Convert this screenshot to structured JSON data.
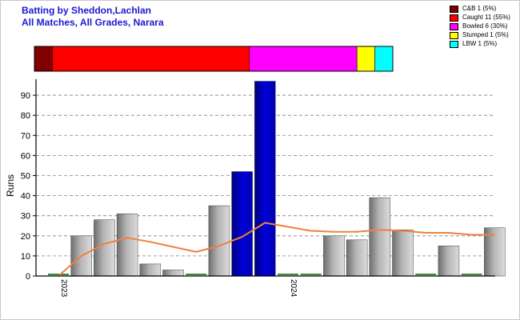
{
  "title_line1": "Batting by Sheddon,Lachlan",
  "title_line2": "All Matches, All Grades, Narara",
  "legend": [
    {
      "label": "C&B 1 (5%)",
      "color": "#800000"
    },
    {
      "label": "Caught 11 (55%)",
      "color": "#ff0000"
    },
    {
      "label": "Bowled 6 (30%)",
      "color": "#ff00ff"
    },
    {
      "label": "Stumped 1 (5%)",
      "color": "#ffff00"
    },
    {
      "label": "LBW 1 (5%)",
      "color": "#00ffff"
    }
  ],
  "chart_data": {
    "type": "bar",
    "ylabel": "Runs",
    "xlabel": "",
    "ylim": [
      0,
      98
    ],
    "yticks": [
      0,
      10,
      20,
      30,
      40,
      50,
      60,
      70,
      80,
      90
    ],
    "grid": "horizontal dashed",
    "x_tick_labels": [
      {
        "label": "2023",
        "at_bar": 0
      },
      {
        "label": "2024",
        "at_bar": 10
      }
    ],
    "bars": [
      {
        "value": 0,
        "style": "not-out"
      },
      {
        "value": 20,
        "style": "out"
      },
      {
        "value": 28,
        "style": "out"
      },
      {
        "value": 31,
        "style": "out"
      },
      {
        "value": 6,
        "style": "out"
      },
      {
        "value": 3,
        "style": "out"
      },
      {
        "value": 0,
        "style": "not-out"
      },
      {
        "value": 35,
        "style": "out"
      },
      {
        "value": 52,
        "style": "highlight"
      },
      {
        "value": 97,
        "style": "highlight"
      },
      {
        "value": 0,
        "style": "not-out"
      },
      {
        "value": 0,
        "style": "not-out"
      },
      {
        "value": 20,
        "style": "out"
      },
      {
        "value": 18,
        "style": "out"
      },
      {
        "value": 39,
        "style": "out"
      },
      {
        "value": 23,
        "style": "out"
      },
      {
        "value": 0,
        "style": "not-out"
      },
      {
        "value": 15,
        "style": "out"
      },
      {
        "value": 0,
        "style": "not-out"
      },
      {
        "value": 24,
        "style": "out"
      }
    ],
    "average_line": {
      "color": "#f08040",
      "points": [
        {
          "at_bar": 0,
          "value": 0
        },
        {
          "at_bar": 1,
          "value": 10
        },
        {
          "at_bar": 2,
          "value": 16
        },
        {
          "at_bar": 3,
          "value": 19
        },
        {
          "at_bar": 4,
          "value": 17
        },
        {
          "at_bar": 5,
          "value": 14.5
        },
        {
          "at_bar": 6,
          "value": 12
        },
        {
          "at_bar": 7,
          "value": 15
        },
        {
          "at_bar": 8,
          "value": 19.5
        },
        {
          "at_bar": 9,
          "value": 26.5
        },
        {
          "at_bar": 10,
          "value": 24.5
        },
        {
          "at_bar": 11,
          "value": 22.5
        },
        {
          "at_bar": 12,
          "value": 22
        },
        {
          "at_bar": 13,
          "value": 22
        },
        {
          "at_bar": 14,
          "value": 23
        },
        {
          "at_bar": 15,
          "value": 22.5
        },
        {
          "at_bar": 16,
          "value": 21.5
        },
        {
          "at_bar": 17,
          "value": 21.5
        },
        {
          "at_bar": 18,
          "value": 20.5
        },
        {
          "at_bar": 19,
          "value": 20.5
        }
      ]
    },
    "dismissal_bar": [
      {
        "label": "C&B",
        "count": 1,
        "color": "#800000"
      },
      {
        "label": "Caught",
        "count": 11,
        "color": "#ff0000"
      },
      {
        "label": "Bowled",
        "count": 6,
        "color": "#ff00ff"
      },
      {
        "label": "Stumped",
        "count": 1,
        "color": "#ffff00"
      },
      {
        "label": "LBW",
        "count": 1,
        "color": "#00ffff"
      }
    ]
  }
}
